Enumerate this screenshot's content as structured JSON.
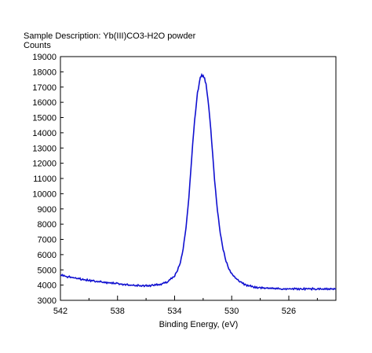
{
  "chart_data": {
    "type": "line",
    "title": "Sample Description:  Yb(III)CO3-H2O powder",
    "ylabel": "Counts",
    "xlabel": "Binding Energy, (eV)",
    "x_reversed": true,
    "xlim": [
      542,
      522.7
    ],
    "ylim": [
      3000,
      19000
    ],
    "x_ticks": [
      542,
      538,
      534,
      530,
      526
    ],
    "x_minor_ticks": [
      540,
      536,
      532,
      528,
      524
    ],
    "y_ticks": [
      3000,
      4000,
      5000,
      6000,
      7000,
      8000,
      9000,
      10000,
      11000,
      12000,
      13000,
      14000,
      15000,
      16000,
      17000,
      18000,
      19000
    ],
    "grid": false,
    "legend": "none",
    "line_color": "#1010d0",
    "series": [
      {
        "x": [
          542,
          541.5,
          541,
          540.5,
          540,
          539.5,
          539,
          538.5,
          538,
          537.5,
          537,
          536.5,
          536,
          535.5,
          535,
          534.5,
          534,
          533.8,
          533.6,
          533.4,
          533.2,
          533.0,
          532.8,
          532.6,
          532.4,
          532.2,
          532.1,
          532.0,
          531.9,
          531.8,
          531.6,
          531.4,
          531.2,
          531.0,
          530.8,
          530.6,
          530.4,
          530.2,
          530.0,
          529.5,
          529.0,
          528.5,
          528.0,
          527.5,
          527.0,
          526.5,
          526.0,
          525.0,
          524.0,
          523.0,
          522.7
        ],
        "y": [
          4650,
          4550,
          4470,
          4380,
          4310,
          4250,
          4200,
          4140,
          4090,
          4030,
          3990,
          3970,
          3960,
          3980,
          4050,
          4220,
          4620,
          4950,
          5500,
          6400,
          7800,
          9800,
          12400,
          14800,
          16600,
          17600,
          17780,
          17700,
          17550,
          17200,
          15700,
          13400,
          10900,
          8900,
          7400,
          6350,
          5600,
          5100,
          4750,
          4250,
          4000,
          3880,
          3820,
          3780,
          3770,
          3760,
          3760,
          3750,
          3750,
          3750,
          3760
        ]
      }
    ]
  }
}
